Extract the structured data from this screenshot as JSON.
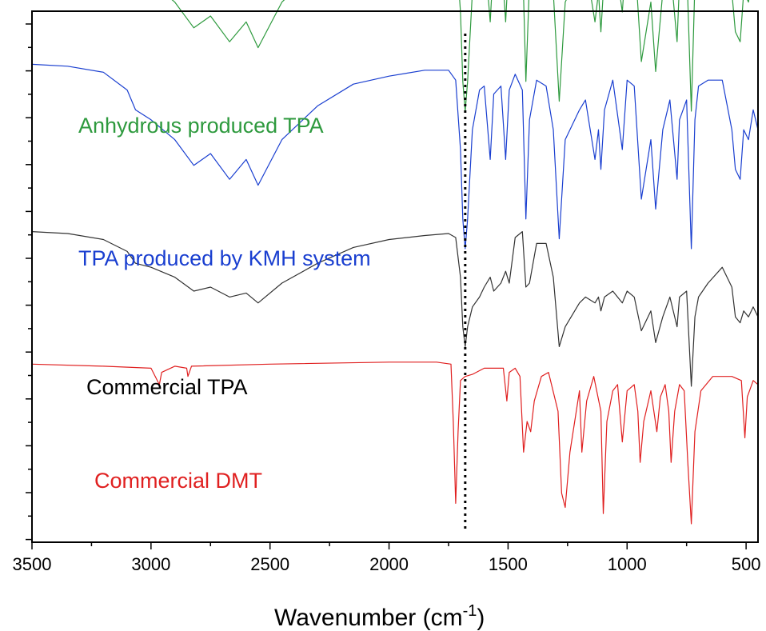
{
  "chart_data": {
    "type": "line",
    "title": "",
    "xlabel": "Wavenumber (cm",
    "xlabel_sup": "-1",
    "xlabel_end": ")",
    "ylabel": "",
    "xlim": [
      3500,
      450
    ],
    "x_reversed": true,
    "y_ticks_labeled": false,
    "x_ticks": [
      3500,
      3000,
      2500,
      2000,
      1500,
      1000,
      500
    ],
    "x_tick_labels": [
      "3500",
      "3000",
      "2500",
      "2000",
      "1500",
      "1000",
      "500"
    ],
    "reference_line": {
      "x": 1680,
      "style": "dotted",
      "color": "#000000"
    },
    "series": [
      {
        "name": "Anhydrous produced TPA",
        "color": "#2e9a3e",
        "offset": 3,
        "points": [
          [
            3500,
            0.93
          ],
          [
            3350,
            0.92
          ],
          [
            3200,
            0.89
          ],
          [
            3100,
            0.8
          ],
          [
            3065,
            0.7
          ],
          [
            3000,
            0.65
          ],
          [
            2900,
            0.55
          ],
          [
            2820,
            0.42
          ],
          [
            2750,
            0.48
          ],
          [
            2670,
            0.35
          ],
          [
            2600,
            0.45
          ],
          [
            2550,
            0.32
          ],
          [
            2450,
            0.55
          ],
          [
            2300,
            0.72
          ],
          [
            2150,
            0.83
          ],
          [
            2000,
            0.87
          ],
          [
            1850,
            0.9
          ],
          [
            1750,
            0.9
          ],
          [
            1720,
            0.85
          ],
          [
            1700,
            0.5
          ],
          [
            1690,
            0.15
          ],
          [
            1680,
            0.0
          ],
          [
            1670,
            0.15
          ],
          [
            1650,
            0.6
          ],
          [
            1620,
            0.8
          ],
          [
            1600,
            0.82
          ],
          [
            1575,
            0.45
          ],
          [
            1560,
            0.78
          ],
          [
            1530,
            0.82
          ],
          [
            1510,
            0.45
          ],
          [
            1495,
            0.8
          ],
          [
            1470,
            0.88
          ],
          [
            1440,
            0.8
          ],
          [
            1425,
            0.15
          ],
          [
            1410,
            0.65
          ],
          [
            1380,
            0.85
          ],
          [
            1340,
            0.82
          ],
          [
            1310,
            0.6
          ],
          [
            1285,
            0.05
          ],
          [
            1260,
            0.55
          ],
          [
            1200,
            0.7
          ],
          [
            1175,
            0.75
          ],
          [
            1135,
            0.45
          ],
          [
            1120,
            0.6
          ],
          [
            1110,
            0.4
          ],
          [
            1095,
            0.7
          ],
          [
            1060,
            0.85
          ],
          [
            1020,
            0.5
          ],
          [
            1000,
            0.85
          ],
          [
            970,
            0.82
          ],
          [
            940,
            0.25
          ],
          [
            900,
            0.55
          ],
          [
            880,
            0.2
          ],
          [
            850,
            0.6
          ],
          [
            820,
            0.75
          ],
          [
            790,
            0.35
          ],
          [
            780,
            0.65
          ],
          [
            750,
            0.75
          ],
          [
            730,
            0.0
          ],
          [
            715,
            0.65
          ],
          [
            700,
            0.82
          ],
          [
            660,
            0.85
          ],
          [
            600,
            0.85
          ],
          [
            560,
            0.6
          ],
          [
            545,
            0.4
          ],
          [
            525,
            0.35
          ],
          [
            510,
            0.6
          ],
          [
            490,
            0.55
          ],
          [
            470,
            0.7
          ],
          [
            450,
            0.6
          ]
        ]
      },
      {
        "name": "TPA produced by KMH system",
        "color": "#1a3fd0",
        "offset": 2,
        "points": [
          [
            3500,
            0.93
          ],
          [
            3350,
            0.92
          ],
          [
            3200,
            0.89
          ],
          [
            3100,
            0.8
          ],
          [
            3065,
            0.7
          ],
          [
            3000,
            0.65
          ],
          [
            2900,
            0.55
          ],
          [
            2820,
            0.42
          ],
          [
            2750,
            0.48
          ],
          [
            2670,
            0.35
          ],
          [
            2600,
            0.45
          ],
          [
            2550,
            0.32
          ],
          [
            2450,
            0.55
          ],
          [
            2300,
            0.72
          ],
          [
            2150,
            0.83
          ],
          [
            2000,
            0.87
          ],
          [
            1850,
            0.9
          ],
          [
            1750,
            0.9
          ],
          [
            1720,
            0.85
          ],
          [
            1700,
            0.5
          ],
          [
            1690,
            0.15
          ],
          [
            1680,
            0.0
          ],
          [
            1670,
            0.15
          ],
          [
            1650,
            0.6
          ],
          [
            1620,
            0.8
          ],
          [
            1600,
            0.82
          ],
          [
            1575,
            0.45
          ],
          [
            1560,
            0.78
          ],
          [
            1530,
            0.82
          ],
          [
            1510,
            0.45
          ],
          [
            1495,
            0.8
          ],
          [
            1470,
            0.88
          ],
          [
            1440,
            0.8
          ],
          [
            1425,
            0.15
          ],
          [
            1410,
            0.65
          ],
          [
            1380,
            0.85
          ],
          [
            1340,
            0.82
          ],
          [
            1310,
            0.6
          ],
          [
            1285,
            0.05
          ],
          [
            1260,
            0.55
          ],
          [
            1200,
            0.7
          ],
          [
            1175,
            0.75
          ],
          [
            1135,
            0.45
          ],
          [
            1120,
            0.6
          ],
          [
            1110,
            0.4
          ],
          [
            1095,
            0.7
          ],
          [
            1060,
            0.85
          ],
          [
            1020,
            0.5
          ],
          [
            1000,
            0.85
          ],
          [
            970,
            0.82
          ],
          [
            940,
            0.25
          ],
          [
            900,
            0.55
          ],
          [
            880,
            0.2
          ],
          [
            850,
            0.6
          ],
          [
            820,
            0.75
          ],
          [
            790,
            0.35
          ],
          [
            780,
            0.65
          ],
          [
            750,
            0.75
          ],
          [
            730,
            0.0
          ],
          [
            715,
            0.65
          ],
          [
            700,
            0.82
          ],
          [
            660,
            0.85
          ],
          [
            600,
            0.85
          ],
          [
            560,
            0.6
          ],
          [
            545,
            0.4
          ],
          [
            525,
            0.35
          ],
          [
            510,
            0.6
          ],
          [
            490,
            0.55
          ],
          [
            470,
            0.7
          ],
          [
            450,
            0.6
          ]
        ]
      },
      {
        "name": "Commercial TPA",
        "color": "#333333",
        "offset": 1,
        "points": [
          [
            3500,
            0.78
          ],
          [
            3350,
            0.77
          ],
          [
            3200,
            0.74
          ],
          [
            3100,
            0.68
          ],
          [
            3065,
            0.62
          ],
          [
            3000,
            0.6
          ],
          [
            2900,
            0.55
          ],
          [
            2820,
            0.48
          ],
          [
            2750,
            0.5
          ],
          [
            2670,
            0.45
          ],
          [
            2600,
            0.47
          ],
          [
            2550,
            0.42
          ],
          [
            2450,
            0.52
          ],
          [
            2300,
            0.62
          ],
          [
            2150,
            0.7
          ],
          [
            2000,
            0.74
          ],
          [
            1850,
            0.76
          ],
          [
            1750,
            0.77
          ],
          [
            1720,
            0.75
          ],
          [
            1700,
            0.55
          ],
          [
            1690,
            0.3
          ],
          [
            1680,
            0.2
          ],
          [
            1670,
            0.3
          ],
          [
            1650,
            0.4
          ],
          [
            1620,
            0.45
          ],
          [
            1600,
            0.5
          ],
          [
            1575,
            0.55
          ],
          [
            1560,
            0.48
          ],
          [
            1530,
            0.52
          ],
          [
            1510,
            0.58
          ],
          [
            1495,
            0.52
          ],
          [
            1470,
            0.75
          ],
          [
            1440,
            0.78
          ],
          [
            1425,
            0.5
          ],
          [
            1410,
            0.52
          ],
          [
            1380,
            0.72
          ],
          [
            1340,
            0.72
          ],
          [
            1310,
            0.55
          ],
          [
            1285,
            0.2
          ],
          [
            1260,
            0.3
          ],
          [
            1200,
            0.42
          ],
          [
            1175,
            0.45
          ],
          [
            1135,
            0.42
          ],
          [
            1120,
            0.45
          ],
          [
            1110,
            0.38
          ],
          [
            1095,
            0.45
          ],
          [
            1060,
            0.48
          ],
          [
            1020,
            0.42
          ],
          [
            1000,
            0.48
          ],
          [
            970,
            0.45
          ],
          [
            940,
            0.28
          ],
          [
            900,
            0.38
          ],
          [
            880,
            0.22
          ],
          [
            850,
            0.35
          ],
          [
            820,
            0.45
          ],
          [
            790,
            0.3
          ],
          [
            780,
            0.45
          ],
          [
            750,
            0.48
          ],
          [
            730,
            0.0
          ],
          [
            715,
            0.35
          ],
          [
            700,
            0.45
          ],
          [
            660,
            0.52
          ],
          [
            600,
            0.6
          ],
          [
            560,
            0.5
          ],
          [
            545,
            0.35
          ],
          [
            525,
            0.32
          ],
          [
            510,
            0.38
          ],
          [
            490,
            0.35
          ],
          [
            470,
            0.4
          ],
          [
            450,
            0.35
          ]
        ]
      },
      {
        "name": "Commercial DMT",
        "color": "#e02020",
        "offset": 0,
        "points": [
          [
            3500,
            0.78
          ],
          [
            3200,
            0.77
          ],
          [
            3000,
            0.76
          ],
          [
            2965,
            0.68
          ],
          [
            2955,
            0.74
          ],
          [
            2900,
            0.77
          ],
          [
            2850,
            0.76
          ],
          [
            2845,
            0.72
          ],
          [
            2830,
            0.77
          ],
          [
            2500,
            0.78
          ],
          [
            2000,
            0.79
          ],
          [
            1800,
            0.79
          ],
          [
            1740,
            0.78
          ],
          [
            1730,
            0.5
          ],
          [
            1720,
            0.1
          ],
          [
            1710,
            0.45
          ],
          [
            1700,
            0.7
          ],
          [
            1680,
            0.72
          ],
          [
            1650,
            0.73
          ],
          [
            1600,
            0.76
          ],
          [
            1520,
            0.76
          ],
          [
            1505,
            0.6
          ],
          [
            1495,
            0.74
          ],
          [
            1470,
            0.76
          ],
          [
            1450,
            0.72
          ],
          [
            1435,
            0.35
          ],
          [
            1420,
            0.5
          ],
          [
            1405,
            0.45
          ],
          [
            1390,
            0.6
          ],
          [
            1360,
            0.72
          ],
          [
            1330,
            0.74
          ],
          [
            1290,
            0.55
          ],
          [
            1275,
            0.15
          ],
          [
            1260,
            0.08
          ],
          [
            1240,
            0.35
          ],
          [
            1200,
            0.65
          ],
          [
            1190,
            0.35
          ],
          [
            1170,
            0.6
          ],
          [
            1140,
            0.72
          ],
          [
            1110,
            0.55
          ],
          [
            1100,
            0.05
          ],
          [
            1085,
            0.5
          ],
          [
            1060,
            0.65
          ],
          [
            1040,
            0.68
          ],
          [
            1020,
            0.4
          ],
          [
            1000,
            0.65
          ],
          [
            970,
            0.68
          ],
          [
            955,
            0.55
          ],
          [
            945,
            0.3
          ],
          [
            930,
            0.5
          ],
          [
            900,
            0.65
          ],
          [
            875,
            0.45
          ],
          [
            860,
            0.62
          ],
          [
            840,
            0.68
          ],
          [
            825,
            0.55
          ],
          [
            815,
            0.3
          ],
          [
            800,
            0.55
          ],
          [
            780,
            0.68
          ],
          [
            760,
            0.65
          ],
          [
            745,
            0.3
          ],
          [
            730,
            0.0
          ],
          [
            715,
            0.45
          ],
          [
            690,
            0.65
          ],
          [
            640,
            0.72
          ],
          [
            560,
            0.72
          ],
          [
            520,
            0.7
          ],
          [
            505,
            0.42
          ],
          [
            495,
            0.62
          ],
          [
            470,
            0.7
          ],
          [
            450,
            0.68
          ]
        ]
      }
    ],
    "labels": [
      {
        "text": "Anhydrous produced TPA",
        "color": "#2e9a3e",
        "series_index": 0
      },
      {
        "text": "TPA produced by KMH system",
        "color": "#1a3fd0",
        "series_index": 1
      },
      {
        "text": "Commercial TPA",
        "color": "#000000",
        "series_index": 2
      },
      {
        "text": "Commercial DMT",
        "color": "#e02020",
        "series_index": 3
      }
    ]
  }
}
